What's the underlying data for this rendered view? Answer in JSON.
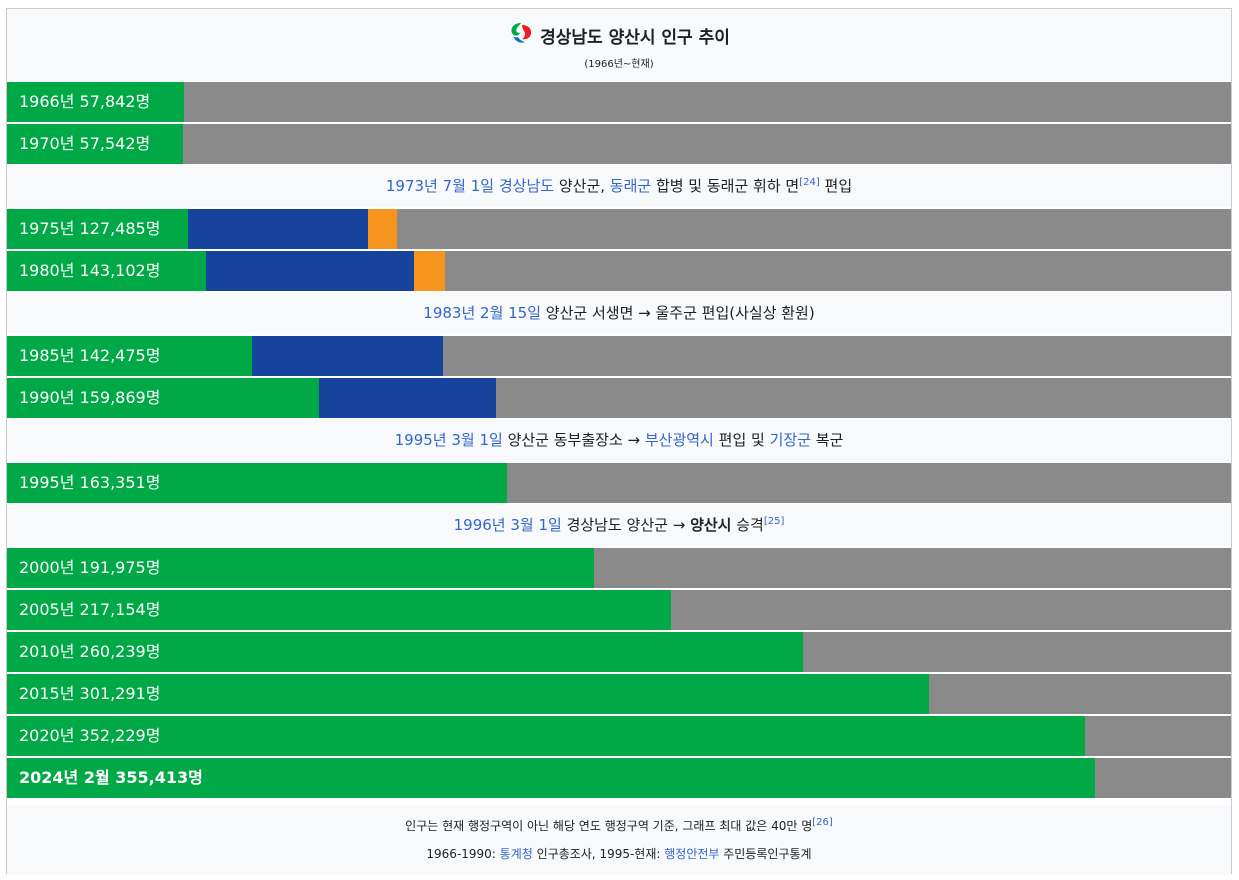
{
  "header": {
    "logo_icon": "yangsan-city-logo-icon",
    "title": "경상남도 양산시 인구 추이",
    "subtitle": "(1966년~현재)"
  },
  "colors": {
    "bar_green": "#00a846",
    "bar_blue": "#16449d",
    "bar_orange": "#f7941d",
    "bar_remainder": "#8a8a8a",
    "link": "#3366cc"
  },
  "chart_data": {
    "type": "bar",
    "orientation": "horizontal",
    "stacked": true,
    "title": "경상남도 양산시 인구 추이",
    "subtitle": "(1966년~현재)",
    "xlim": [
      0,
      400000
    ],
    "categories": [
      "1966년",
      "1970년",
      "1975년",
      "1980년",
      "1985년",
      "1990년",
      "1995년",
      "2000년",
      "2005년",
      "2010년",
      "2015년",
      "2020년",
      "2024년 2월"
    ],
    "totals": [
      57842,
      57542,
      127485,
      143102,
      142475,
      159869,
      163351,
      191975,
      217154,
      260239,
      301291,
      352229,
      355413
    ],
    "series": [
      {
        "color": "#00a846",
        "values": [
          57842,
          57542,
          59000,
          65000,
          80000,
          102000,
          163351,
          191975,
          217154,
          260239,
          301291,
          352229,
          355413
        ]
      },
      {
        "color": "#16449d",
        "values": [
          0,
          0,
          59000,
          68000,
          62475,
          57869,
          0,
          0,
          0,
          0,
          0,
          0,
          0
        ]
      },
      {
        "color": "#f7941d",
        "values": [
          0,
          0,
          9485,
          10102,
          0,
          0,
          0,
          0,
          0,
          0,
          0,
          0,
          0
        ]
      }
    ]
  },
  "rows": [
    {
      "kind": "bar",
      "label": "1966년 57,842명"
    },
    {
      "kind": "bar",
      "label": "1970년 57,542명"
    },
    {
      "kind": "event",
      "parts": [
        {
          "t": "1973년 7월 1일",
          "link": true
        },
        {
          "t": " "
        },
        {
          "t": "경상남도",
          "link": true
        },
        {
          "t": " 양산군, "
        },
        {
          "t": "동래군",
          "link": true
        },
        {
          "t": " 합병 및 동래군 휘하 면"
        },
        {
          "t": "[24]",
          "sup": true
        },
        {
          "t": " 편입"
        }
      ]
    },
    {
      "kind": "bar",
      "label": "1975년 127,485명"
    },
    {
      "kind": "bar",
      "label": "1980년 143,102명"
    },
    {
      "kind": "event",
      "parts": [
        {
          "t": "1983년 2월 15일",
          "link": true
        },
        {
          "t": " 양산군 서생면 → 울주군 편입(사실상 환원)"
        }
      ]
    },
    {
      "kind": "bar",
      "label": "1985년 142,475명"
    },
    {
      "kind": "bar",
      "label": "1990년 159,869명"
    },
    {
      "kind": "event",
      "parts": [
        {
          "t": "1995년 3월 1일",
          "link": true
        },
        {
          "t": " 양산군 동부출장소 → "
        },
        {
          "t": "부산광역시",
          "link": true
        },
        {
          "t": " 편입 및 "
        },
        {
          "t": "기장군",
          "link": true
        },
        {
          "t": " 복군"
        }
      ]
    },
    {
      "kind": "bar",
      "label": "1995년 163,351명"
    },
    {
      "kind": "event",
      "parts": [
        {
          "t": "1996년 3월 1일",
          "link": true
        },
        {
          "t": " 경상남도 양산군 → "
        },
        {
          "t": "양산시",
          "bold": true
        },
        {
          "t": " 승격"
        },
        {
          "t": "[25]",
          "sup": true
        }
      ]
    },
    {
      "kind": "bar",
      "label": "2000년 191,975명"
    },
    {
      "kind": "bar",
      "label": "2005년 217,154명"
    },
    {
      "kind": "bar",
      "label": "2010년 260,239명"
    },
    {
      "kind": "bar",
      "label": "2015년 301,291명"
    },
    {
      "kind": "bar",
      "label": "2020년 352,229명"
    },
    {
      "kind": "bar",
      "label": "2024년 2월 355,413명",
      "bold": true
    }
  ],
  "footer": {
    "line1": [
      {
        "t": "인구는 현재 행정구역이 아닌 해당 연도 행정구역 기준, 그래프 최대 값은 40만 명"
      },
      {
        "t": "[26]",
        "sup": true
      }
    ],
    "line2": [
      {
        "t": "1966-1990: "
      },
      {
        "t": "통계청",
        "link": true
      },
      {
        "t": " 인구총조사, 1995-현재: "
      },
      {
        "t": "행정안전부",
        "link": true
      },
      {
        "t": " 주민등록인구통계"
      }
    ]
  }
}
